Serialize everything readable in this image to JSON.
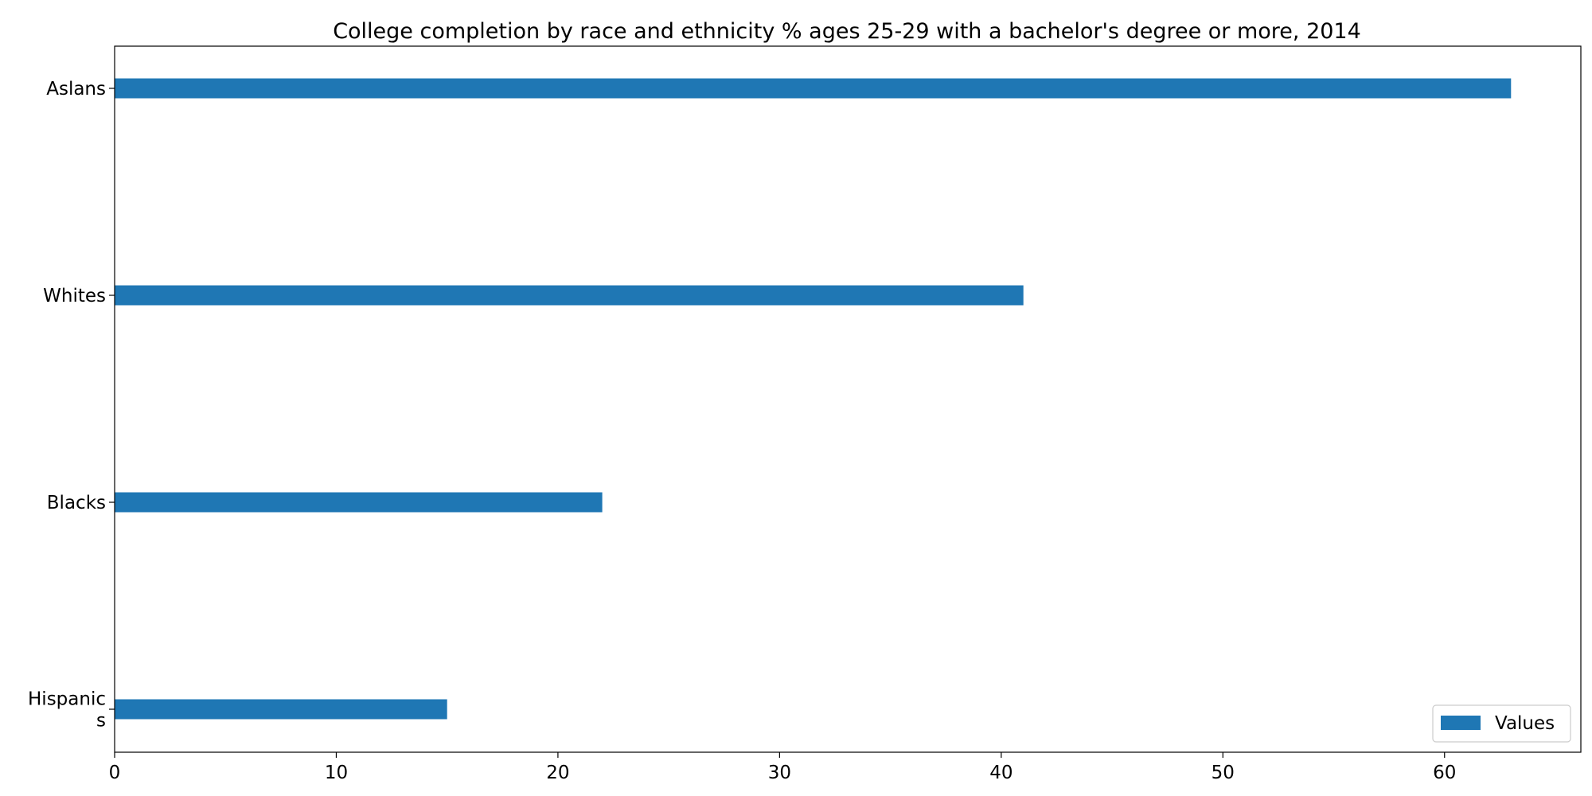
{
  "chart_data": {
    "type": "bar",
    "orientation": "horizontal",
    "title": "College completion by race and ethnicity % ages 25-29 with a bachelor's degree or more, 2014",
    "xlabel": "",
    "ylabel": "",
    "categories": [
      "Aslans",
      "Whites",
      "Blacks",
      "Hispanics"
    ],
    "category_display_lines": [
      [
        "Aslans"
      ],
      [
        "Whites"
      ],
      [
        "Blacks"
      ],
      [
        "Hispanic",
        "s"
      ]
    ],
    "series": [
      {
        "name": "Values",
        "values": [
          63,
          41,
          22,
          15
        ],
        "color": "#1f77b4"
      }
    ],
    "xlim": [
      0,
      66.15
    ],
    "xticks": [
      0,
      10,
      20,
      30,
      40,
      50,
      60
    ],
    "grid": false,
    "legend_position": "bottom-right"
  }
}
